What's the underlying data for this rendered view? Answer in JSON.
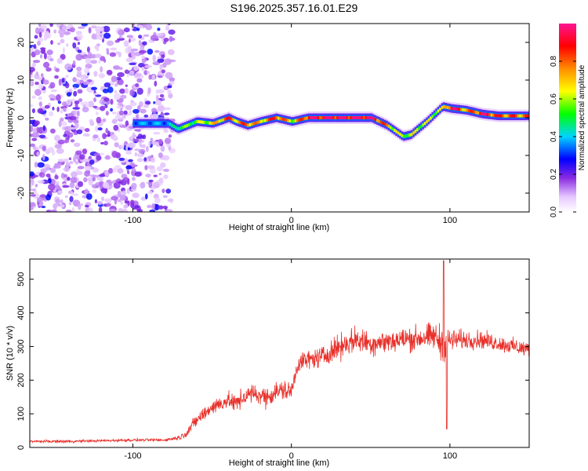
{
  "title": "S196.2025.357.16.01.E29",
  "chart_data": [
    {
      "type": "heatmap",
      "xlabel": "Height of straight line (km)",
      "ylabel": "Frequency (Hz)",
      "xlim": [
        -165,
        150
      ],
      "ylim": [
        -25,
        25
      ],
      "xticks": [
        -100,
        0,
        100
      ],
      "yticks": [
        -20,
        -10,
        0,
        10,
        20
      ],
      "colorbar": {
        "label": "Normalized spectral amplitude",
        "range": [
          0,
          1
        ],
        "ticks": [
          "0.0",
          "0.2",
          "0.4",
          "0.6",
          "0.8"
        ]
      },
      "noise_region_x": [
        -165,
        -75
      ],
      "ridge_x": [
        -100,
        -78,
        -72,
        -60,
        -50,
        -40,
        -35,
        -28,
        -20,
        -10,
        0,
        10,
        30,
        50,
        60,
        70,
        75,
        85,
        95,
        100,
        110,
        120,
        130,
        150
      ],
      "ridge_freq": [
        -1.5,
        -1.5,
        -3,
        -1,
        -1.5,
        0,
        -1,
        -2,
        -1,
        0,
        -1,
        0,
        0,
        0,
        -2,
        -5,
        -4.5,
        -1,
        3,
        2.5,
        2,
        1,
        0.5,
        0.5
      ],
      "ridge_amp": [
        0.35,
        0.35,
        0.5,
        0.55,
        0.65,
        0.8,
        0.7,
        0.8,
        0.65,
        0.85,
        0.6,
        0.9,
        0.95,
        0.95,
        0.7,
        0.55,
        0.6,
        0.6,
        0.6,
        0.95,
        0.7,
        0.9,
        0.8,
        0.75
      ]
    },
    {
      "type": "line",
      "xlabel": "Height of straight line (km)",
      "ylabel": "SNR (10 * v/v)",
      "xlim": [
        -165,
        150
      ],
      "ylim": [
        0,
        560
      ],
      "xticks": [
        -100,
        0,
        100
      ],
      "yticks": [
        0,
        100,
        200,
        300,
        400,
        500
      ],
      "series": [
        {
          "name": "SNR",
          "color": "#e8302a",
          "x": [
            -165,
            -140,
            -120,
            -100,
            -80,
            -70,
            -66,
            -60,
            -55,
            -50,
            -45,
            -40,
            -35,
            -30,
            -25,
            -20,
            -15,
            -10,
            -5,
            0,
            3,
            5,
            10,
            20,
            30,
            40,
            50,
            60,
            70,
            80,
            90,
            95,
            97,
            100,
            110,
            120,
            130,
            140,
            150
          ],
          "y": [
            18,
            18,
            20,
            22,
            22,
            30,
            45,
            80,
            100,
            120,
            130,
            140,
            130,
            150,
            160,
            155,
            150,
            165,
            170,
            165,
            230,
            255,
            260,
            270,
            300,
            320,
            310,
            315,
            320,
            325,
            330,
            310,
            300,
            320,
            320,
            320,
            310,
            300,
            290
          ],
          "noise": [
            6,
            6,
            6,
            6,
            6,
            10,
            20,
            30,
            30,
            35,
            35,
            35,
            40,
            40,
            40,
            40,
            45,
            45,
            45,
            45,
            40,
            40,
            40,
            45,
            55,
            55,
            55,
            50,
            55,
            55,
            60,
            80,
            80,
            50,
            40,
            40,
            35,
            35,
            40
          ]
        }
      ],
      "annotations": [
        {
          "x": 96,
          "y": 555,
          "label": "spike"
        },
        {
          "x": 98,
          "y": 55,
          "label": "dip"
        }
      ]
    }
  ]
}
